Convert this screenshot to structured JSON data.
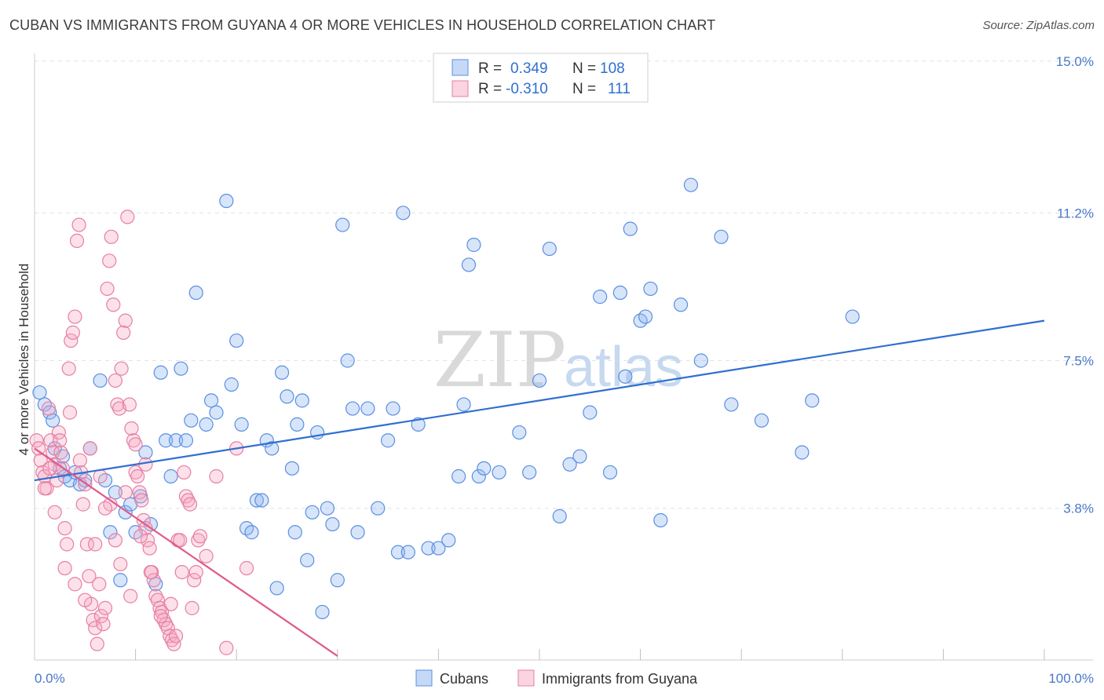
{
  "title": "CUBAN VS IMMIGRANTS FROM GUYANA 4 OR MORE VEHICLES IN HOUSEHOLD CORRELATION CHART",
  "source": "Source: ZipAtlas.com",
  "chart_data": {
    "type": "scatter",
    "ylabel": "4 or more Vehicles in Household",
    "xlim": [
      0,
      100
    ],
    "ylim": [
      0,
      15
    ],
    "x_tick_labels": [
      "0.0%",
      "100.0%"
    ],
    "y_ticks": [
      3.8,
      7.5,
      11.2,
      15.0
    ],
    "y_tick_labels": [
      "3.8%",
      "7.5%",
      "11.2%",
      "15.0%"
    ],
    "watermark": {
      "zip": "ZIP",
      "atlas": "atlas"
    },
    "legend": {
      "r_label": "R =",
      "n_label": "N =",
      "entries": [
        {
          "r": "0.349",
          "n": "108"
        },
        {
          "r": "-0.310",
          "n": "111"
        }
      ]
    },
    "series": [
      {
        "name": "Cubans",
        "color": "#5b8fe0",
        "fill": "rgba(140,180,240,0.35)",
        "line_color": "#2f6fd0",
        "trend": [
          [
            0,
            4.5
          ],
          [
            100,
            8.5
          ]
        ],
        "points": [
          [
            0.5,
            6.7
          ],
          [
            1,
            6.4
          ],
          [
            1.5,
            6.2
          ],
          [
            1.8,
            6.0
          ],
          [
            2,
            5.3
          ],
          [
            2.5,
            4.8
          ],
          [
            2.8,
            5.1
          ],
          [
            3,
            4.6
          ],
          [
            3.5,
            4.5
          ],
          [
            4,
            4.7
          ],
          [
            4.5,
            4.4
          ],
          [
            5,
            4.5
          ],
          [
            5.5,
            5.3
          ],
          [
            6.5,
            7.0
          ],
          [
            7,
            4.5
          ],
          [
            7.5,
            3.2
          ],
          [
            8,
            4.2
          ],
          [
            8.5,
            2.0
          ],
          [
            9,
            3.7
          ],
          [
            9.5,
            3.9
          ],
          [
            10,
            3.2
          ],
          [
            10.5,
            4.1
          ],
          [
            11,
            5.2
          ],
          [
            11.5,
            3.4
          ],
          [
            12,
            1.9
          ],
          [
            12.5,
            7.2
          ],
          [
            13,
            5.5
          ],
          [
            13.5,
            4.6
          ],
          [
            14,
            5.5
          ],
          [
            14.5,
            7.3
          ],
          [
            15,
            5.5
          ],
          [
            15.5,
            6.0
          ],
          [
            16,
            9.2
          ],
          [
            17,
            5.9
          ],
          [
            17.5,
            6.5
          ],
          [
            18,
            6.2
          ],
          [
            19,
            11.5
          ],
          [
            19.5,
            6.9
          ],
          [
            20,
            8.0
          ],
          [
            20.5,
            5.9
          ],
          [
            21,
            3.3
          ],
          [
            21.5,
            3.2
          ],
          [
            22,
            4.0
          ],
          [
            22.5,
            4.0
          ],
          [
            23,
            5.5
          ],
          [
            23.5,
            5.3
          ],
          [
            24,
            1.8
          ],
          [
            24.5,
            7.2
          ],
          [
            25,
            6.6
          ],
          [
            25.5,
            4.8
          ],
          [
            25.8,
            3.2
          ],
          [
            26,
            5.9
          ],
          [
            26.5,
            6.5
          ],
          [
            27,
            2.5
          ],
          [
            27.5,
            3.7
          ],
          [
            28,
            5.7
          ],
          [
            28.5,
            1.2
          ],
          [
            29,
            3.8
          ],
          [
            29.5,
            3.4
          ],
          [
            30,
            2.0
          ],
          [
            30.5,
            10.9
          ],
          [
            31,
            7.5
          ],
          [
            31.5,
            6.3
          ],
          [
            32,
            3.2
          ],
          [
            33,
            6.3
          ],
          [
            34,
            3.8
          ],
          [
            35,
            5.5
          ],
          [
            35.5,
            6.3
          ],
          [
            36,
            2.7
          ],
          [
            36.5,
            11.2
          ],
          [
            37,
            2.7
          ],
          [
            38,
            5.9
          ],
          [
            39,
            2.8
          ],
          [
            40,
            2.8
          ],
          [
            41,
            3.0
          ],
          [
            42,
            4.6
          ],
          [
            42.5,
            6.4
          ],
          [
            43,
            9.9
          ],
          [
            43.5,
            10.4
          ],
          [
            44,
            4.6
          ],
          [
            44.5,
            4.8
          ],
          [
            46,
            4.7
          ],
          [
            48,
            5.7
          ],
          [
            49,
            4.7
          ],
          [
            50,
            7.0
          ],
          [
            51,
            10.3
          ],
          [
            52,
            3.6
          ],
          [
            53,
            4.9
          ],
          [
            54,
            5.1
          ],
          [
            55,
            6.2
          ],
          [
            56,
            9.1
          ],
          [
            57,
            4.7
          ],
          [
            58,
            9.2
          ],
          [
            58.5,
            7.1
          ],
          [
            59,
            10.8
          ],
          [
            60,
            8.5
          ],
          [
            60.5,
            8.6
          ],
          [
            61,
            9.3
          ],
          [
            62,
            3.5
          ],
          [
            64,
            8.9
          ],
          [
            65,
            11.9
          ],
          [
            66,
            7.5
          ],
          [
            68,
            10.6
          ],
          [
            69,
            6.4
          ],
          [
            72,
            6.0
          ],
          [
            76,
            5.2
          ],
          [
            77,
            6.5
          ],
          [
            81,
            8.6
          ]
        ]
      },
      {
        "name": "Immigrants from Guyana",
        "color": "#e77fa3",
        "fill": "rgba(245,170,195,0.35)",
        "line_color": "#e05a8a",
        "trend": [
          [
            0,
            5.3
          ],
          [
            30,
            0.1
          ]
        ],
        "points": [
          [
            0.2,
            5.5
          ],
          [
            0.4,
            5.3
          ],
          [
            0.6,
            5.0
          ],
          [
            0.8,
            4.7
          ],
          [
            1,
            4.6
          ],
          [
            1.2,
            4.3
          ],
          [
            1.4,
            6.3
          ],
          [
            1.6,
            5.5
          ],
          [
            1.8,
            5.2
          ],
          [
            2,
            4.9
          ],
          [
            2.2,
            4.5
          ],
          [
            2.4,
            5.7
          ],
          [
            2.6,
            5.2
          ],
          [
            2.8,
            4.8
          ],
          [
            3,
            3.3
          ],
          [
            3.2,
            2.9
          ],
          [
            3.4,
            7.3
          ],
          [
            3.6,
            8.0
          ],
          [
            3.8,
            8.2
          ],
          [
            4,
            8.6
          ],
          [
            4.2,
            10.5
          ],
          [
            4.4,
            10.9
          ],
          [
            4.6,
            4.7
          ],
          [
            4.8,
            3.9
          ],
          [
            5,
            4.4
          ],
          [
            5.2,
            2.9
          ],
          [
            5.4,
            2.1
          ],
          [
            5.6,
            1.4
          ],
          [
            5.8,
            1.0
          ],
          [
            6,
            0.8
          ],
          [
            6.2,
            0.4
          ],
          [
            6.4,
            1.9
          ],
          [
            6.6,
            1.1
          ],
          [
            6.8,
            0.9
          ],
          [
            7,
            1.3
          ],
          [
            7.2,
            9.3
          ],
          [
            7.4,
            10.0
          ],
          [
            7.6,
            10.6
          ],
          [
            7.8,
            8.9
          ],
          [
            8,
            7.0
          ],
          [
            8.2,
            6.4
          ],
          [
            8.4,
            6.3
          ],
          [
            8.6,
            7.3
          ],
          [
            8.8,
            8.2
          ],
          [
            9,
            8.5
          ],
          [
            9.2,
            11.1
          ],
          [
            9.4,
            6.4
          ],
          [
            9.6,
            5.8
          ],
          [
            9.8,
            5.5
          ],
          [
            10,
            4.7
          ],
          [
            10.2,
            4.6
          ],
          [
            10.4,
            4.2
          ],
          [
            10.6,
            4.0
          ],
          [
            10.8,
            3.5
          ],
          [
            11,
            3.3
          ],
          [
            11.2,
            3.0
          ],
          [
            11.4,
            2.8
          ],
          [
            11.6,
            2.2
          ],
          [
            11.8,
            2.0
          ],
          [
            12,
            1.6
          ],
          [
            12.2,
            1.5
          ],
          [
            12.4,
            1.3
          ],
          [
            12.6,
            1.2
          ],
          [
            12.8,
            1.0
          ],
          [
            13,
            0.9
          ],
          [
            13.2,
            0.8
          ],
          [
            13.4,
            0.6
          ],
          [
            13.6,
            0.5
          ],
          [
            13.8,
            0.4
          ],
          [
            14,
            0.6
          ],
          [
            14.2,
            3.0
          ],
          [
            14.4,
            3.0
          ],
          [
            14.6,
            2.2
          ],
          [
            14.8,
            4.7
          ],
          [
            15,
            4.1
          ],
          [
            15.2,
            4.0
          ],
          [
            15.4,
            3.9
          ],
          [
            15.6,
            1.3
          ],
          [
            15.8,
            2.0
          ],
          [
            16,
            2.2
          ],
          [
            16.2,
            3.0
          ],
          [
            16.4,
            3.1
          ],
          [
            17,
            2.6
          ],
          [
            18,
            4.6
          ],
          [
            19,
            0.3
          ],
          [
            20,
            5.3
          ],
          [
            21,
            2.3
          ],
          [
            1,
            4.3
          ],
          [
            1.5,
            4.8
          ],
          [
            2.5,
            5.5
          ],
          [
            3.5,
            6.2
          ],
          [
            4.5,
            5.0
          ],
          [
            5.5,
            5.3
          ],
          [
            6.5,
            4.6
          ],
          [
            7.5,
            3.9
          ],
          [
            8.5,
            2.4
          ],
          [
            9.5,
            1.6
          ],
          [
            10.5,
            3.1
          ],
          [
            11.5,
            2.2
          ],
          [
            12.5,
            1.1
          ],
          [
            13.5,
            1.4
          ],
          [
            2,
            3.7
          ],
          [
            3,
            2.3
          ],
          [
            4,
            1.9
          ],
          [
            5,
            1.5
          ],
          [
            6,
            2.9
          ],
          [
            7,
            3.8
          ],
          [
            8,
            3.0
          ],
          [
            9,
            4.2
          ],
          [
            10,
            5.4
          ],
          [
            11,
            4.9
          ]
        ]
      }
    ]
  }
}
